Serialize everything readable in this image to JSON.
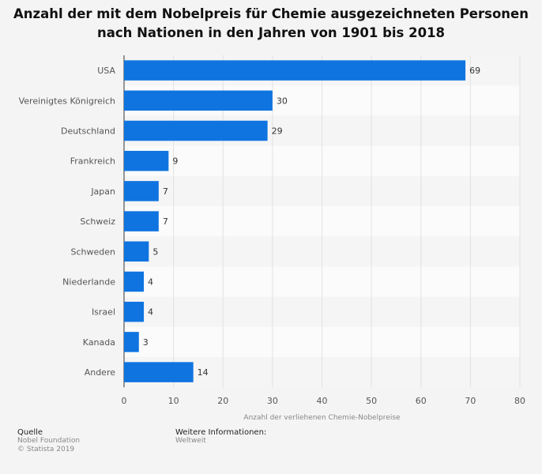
{
  "chart_data": {
    "type": "bar",
    "orientation": "horizontal",
    "title_line1": "Anzahl der mit dem Nobelpreis für Chemie ausgezeichneten Personen",
    "title_line2": "nach Nationen in den Jahren von 1901 bis 2018",
    "categories": [
      "USA",
      "Vereinigtes Königreich",
      "Deutschland",
      "Frankreich",
      "Japan",
      "Schweiz",
      "Schweden",
      "Niederlande",
      "Israel",
      "Kanada",
      "Andere"
    ],
    "values": [
      69,
      30,
      29,
      9,
      7,
      7,
      5,
      4,
      4,
      3,
      14
    ],
    "xlabel": "Anzahl der verliehenen Chemie-Nobelpreise",
    "xlim": [
      0,
      80
    ],
    "xticks": [
      0,
      10,
      20,
      30,
      40,
      50,
      60,
      70,
      80
    ],
    "grid": true,
    "bar_color": "#0f74e0"
  },
  "footer": {
    "source_heading": "Quelle",
    "source_line1": "Nobel Foundation",
    "source_line2": "© Statista 2019",
    "info_heading": "Weitere Informationen:",
    "info_line1": "Weltweit"
  }
}
